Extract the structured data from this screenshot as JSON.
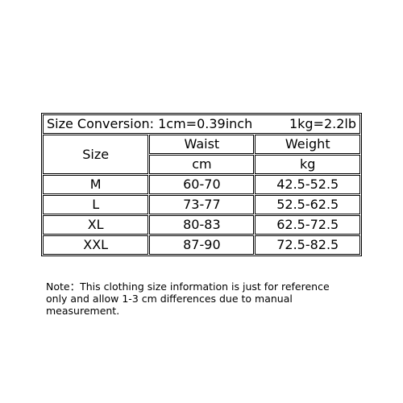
{
  "table": {
    "title_left": "Size Conversion: 1cm=0.39inch",
    "title_right": "1kg=2.2lb",
    "header": [
      "Size",
      "Waist",
      "Weight"
    ],
    "units": [
      "cm",
      "kg"
    ],
    "rows": [
      [
        "M",
        "60-70",
        "42.5-52.5"
      ],
      [
        "L",
        "73-77",
        "52.5-62.5"
      ],
      [
        "XL",
        "80-83",
        "62.5-72.5"
      ],
      [
        "XXL",
        "87-90",
        "72.5-82.5"
      ]
    ]
  },
  "note": [
    "Note：This clothing size information is just for reference",
    "only and allow 1-3 cm differences due to manual measurement."
  ]
}
